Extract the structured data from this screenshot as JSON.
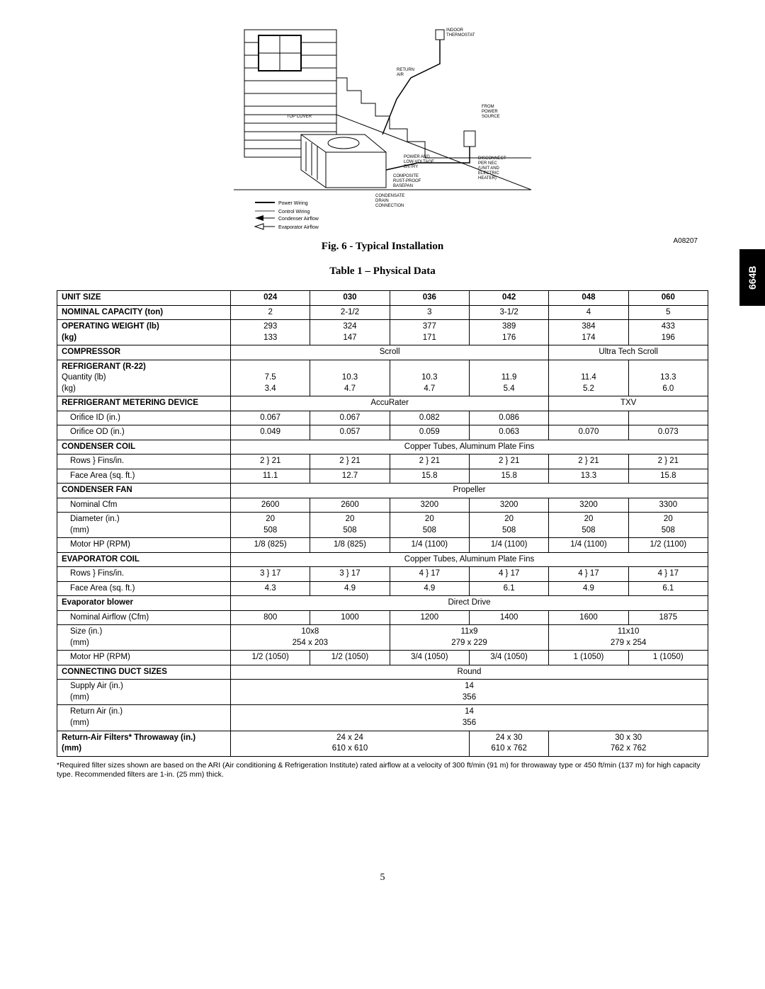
{
  "side_tab": "664B",
  "fig_ref": "A08207",
  "figure_caption": "Fig. 6 - Typical Installation",
  "table_caption": "Table 1 – Physical Data",
  "footnote": "*Required filter sizes shown are based on the ARI (Air conditioning & Refrigeration Institute) rated airflow at a velocity of 300 ft/min (91 m) for throwaway type or 450 ft/min (137 m) for high capacity type. Recommended filters are 1-in. (25 mm) thick.",
  "page_number": "5",
  "diagram_labels": {
    "indoor_thermostat": "INDOOR\nTHERMOSTAT",
    "return_air": "RETURN\nAIR",
    "from_power": "FROM\nPOWER\nSOURCE",
    "top_cover": "TOP COVER",
    "power_low_voltage": "POWER AND\nLOW-VOLTAGE\nENTRY",
    "disconnect": "DISCONNECT\nPER NEC\n(UNIT AND\nELECTRIC\nHEATER)",
    "composite": "COMPOSITE\nRUST-PROOF\nBASEPAN",
    "condensate": "CONDENSATE\nDRAIN\nCONNECTION",
    "legend": {
      "power_wiring": "Power Wiring",
      "control_wiring": "Control Wiring",
      "condenser_airflow": "Condenser Airflow",
      "evaporator_airflow": "Evaporator Airflow"
    }
  },
  "table": {
    "unit_sizes": [
      "024",
      "030",
      "036",
      "042",
      "048",
      "060"
    ],
    "rows": [
      {
        "label": "UNIT SIZE",
        "bold": true,
        "cells": [
          "024",
          "030",
          "036",
          "042",
          "048",
          "060"
        ],
        "bold_cells": true
      },
      {
        "label": "NOMINAL CAPACITY (ton)",
        "bold": true,
        "cells": [
          "2",
          "2-1/2",
          "3",
          "3-1/2",
          "4",
          "5"
        ]
      },
      {
        "label": "OPERATING WEIGHT (lb)\n(kg)",
        "bold": true,
        "cells": [
          "293\n133",
          "324\n147",
          "377\n171",
          "389\n176",
          "384\n174",
          "433\n196"
        ]
      },
      {
        "label": "COMPRESSOR",
        "bold": true,
        "spans": [
          {
            "text": "Scroll",
            "colspan": 4
          },
          {
            "text": "Ultra Tech Scroll",
            "colspan": 2
          }
        ]
      },
      {
        "label": "REFRIGERANT (R-22)\nQuantity (lb)\n(kg)",
        "bold_first": true,
        "cells": [
          "\n7.5\n3.4",
          "\n10.3\n4.7",
          "\n10.3\n4.7",
          "\n11.9\n5.4",
          "\n11.4\n5.2",
          "\n13.3\n6.0"
        ]
      },
      {
        "label": "REFRIGERANT METERING DEVICE",
        "bold": true,
        "spans": [
          {
            "text": "AccuRater",
            "colspan": 4
          },
          {
            "text": "TXV",
            "colspan": 2
          }
        ]
      },
      {
        "label": "Orifice ID (in.)",
        "sub": true,
        "cells": [
          "0.067",
          "0.067",
          "0.082",
          "0.086",
          "",
          ""
        ]
      },
      {
        "label": "Orifice OD (in.)",
        "sub": true,
        "cells": [
          "0.049",
          "0.057",
          "0.059",
          "0.063",
          "0.070",
          "0.073"
        ]
      },
      {
        "label": "CONDENSER COIL",
        "bold": true,
        "spans": [
          {
            "text": "Copper Tubes, Aluminum Plate Fins",
            "colspan": 6
          }
        ]
      },
      {
        "label": "Rows } Fins/in.",
        "sub": true,
        "cells": [
          "2 } 21",
          "2 } 21",
          "2 } 21",
          "2 } 21",
          "2 } 21",
          "2 } 21"
        ]
      },
      {
        "label": "Face Area (sq. ft.)",
        "sub": true,
        "cells": [
          "11.1",
          "12.7",
          "15.8",
          "15.8",
          "13.3",
          "15.8"
        ]
      },
      {
        "label": "CONDENSER FAN",
        "bold": true,
        "spans": [
          {
            "text": "Propeller",
            "colspan": 6
          }
        ]
      },
      {
        "label": "Nominal Cfm",
        "sub": true,
        "cells": [
          "2600",
          "2600",
          "3200",
          "3200",
          "3200",
          "3300"
        ]
      },
      {
        "label": "Diameter (in.)\n(mm)",
        "sub": true,
        "cells": [
          "20\n508",
          "20\n508",
          "20\n508",
          "20\n508",
          "20\n508",
          "20\n508"
        ]
      },
      {
        "label": "Motor HP (RPM)",
        "sub": true,
        "cells": [
          "1/8 (825)",
          "1/8 (825)",
          "1/4 (1100)",
          "1/4 (1100)",
          "1/4 (1100)",
          "1/2 (1100)"
        ]
      },
      {
        "label": "EVAPORATOR COIL",
        "bold": true,
        "spans": [
          {
            "text": "Copper Tubes, Aluminum Plate Fins",
            "colspan": 6
          }
        ]
      },
      {
        "label": "Rows } Fins/in.",
        "sub": true,
        "cells": [
          "3 } 17",
          "3 } 17",
          "4 } 17",
          "4 } 17",
          "4 } 17",
          "4 } 17"
        ]
      },
      {
        "label": "Face Area (sq. ft.)",
        "sub": true,
        "cells": [
          "4.3",
          "4.9",
          "4.9",
          "6.1",
          "4.9",
          "6.1"
        ]
      },
      {
        "label": "Evaporator blower",
        "bold": true,
        "spans": [
          {
            "text": "Direct Drive",
            "colspan": 6
          }
        ]
      },
      {
        "label": "Nominal Airflow (Cfm)",
        "sub": true,
        "cells": [
          "800",
          "1000",
          "1200",
          "1400",
          "1600",
          "1875"
        ]
      },
      {
        "label": "Size (in.)\n(mm)",
        "sub": true,
        "spans": [
          {
            "text": "10x8\n254 x 203",
            "colspan": 2
          },
          {
            "text": "11x9\n279 x 229",
            "colspan": 2
          },
          {
            "text": "11x10\n279 x 254",
            "colspan": 2
          }
        ]
      },
      {
        "label": "Motor HP (RPM)",
        "sub": true,
        "cells": [
          "1/2 (1050)",
          "1/2 (1050)",
          "3/4 (1050)",
          "3/4 (1050)",
          "1 (1050)",
          "1 (1050)"
        ]
      },
      {
        "label": "CONNECTING DUCT SIZES",
        "bold": true,
        "spans": [
          {
            "text": "Round",
            "colspan": 6
          }
        ]
      },
      {
        "label": "Supply Air (in.)\n(mm)",
        "sub": true,
        "spans": [
          {
            "text": "14\n356",
            "colspan": 6
          }
        ]
      },
      {
        "label": "Return Air (in.)\n(mm)",
        "sub": true,
        "spans": [
          {
            "text": "14\n356",
            "colspan": 6
          }
        ]
      },
      {
        "label": "Return-Air Filters* Throwaway   (in.)\n(mm)",
        "bold": true,
        "spans": [
          {
            "text": "24 x 24\n610 x 610",
            "colspan": 3
          },
          {
            "text": "24 x 30\n610 x 762",
            "colspan": 1
          },
          {
            "text": "30 x 30\n762 x 762",
            "colspan": 2
          }
        ]
      }
    ]
  },
  "colors": {
    "text": "#000000",
    "background": "#ffffff",
    "tab_bg": "#000000",
    "tab_text": "#ffffff",
    "border": "#000000"
  }
}
